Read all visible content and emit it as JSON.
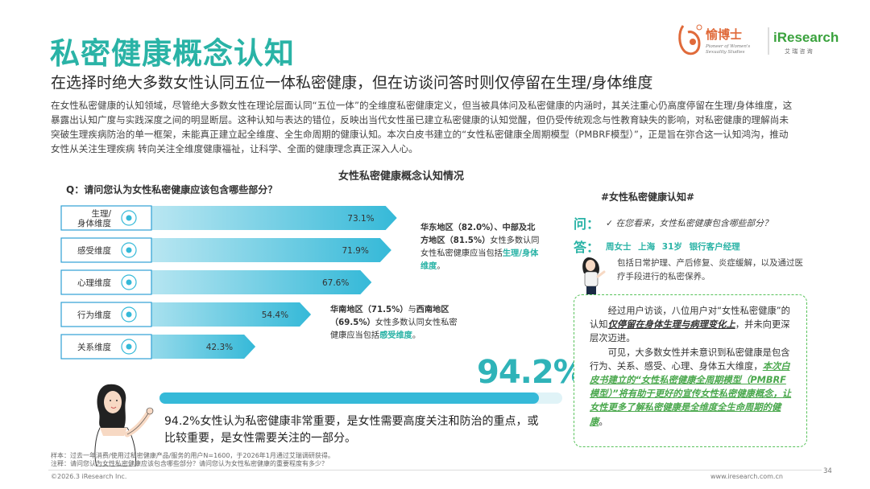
{
  "header": {
    "title": "私密健康概念认知",
    "subtitle": "在选择时绝大多数女性认同五位一体私密健康，但在访谈问答时则仅停留在生理/身体维度",
    "intro": "在女性私密健康的认知领域，尽管绝大多数女性在理论层面认同“五位一体”的全维度私密健康定义，但当被具体问及私密健康的内涵时，其关注重心仍高度停留在生理/身体维度，这暴露出认知广度与实践深度之间的明显断层。这种认知与表达的错位，反映出当代女性虽已建立私密健康的认知觉醒，但仍受传统观念与性教育缺失的影响，对私密健康的理解尚未突破生理疾病防治的单一框架，未能真正建立起全维度、全生命周期的健康认知。本次白皮书建立的“女性私密健康全周期模型（PMBRF模型）”，正是旨在弥合这一认知鸿沟，推动女性从关注生理疾病 转向关注全维度健康福祉，让科学、全面的健康理念真正深入人心。"
  },
  "logo": {
    "brand_cn": "愉博士",
    "brand_en_line1": "Pioneer of Women's",
    "brand_en_line2": "Sexuality Studies",
    "partner": "iResearch",
    "partner_cn": "艾 瑞 咨 询"
  },
  "chart_data": {
    "type": "bar",
    "title": "女性私密健康概念认知情况",
    "question": "Q：请问您认为女性私密健康应该包含哪些部分？",
    "categories": [
      "生理/身体维度",
      "感受维度",
      "心理维度",
      "行为维度",
      "关系维度"
    ],
    "category_lines": [
      [
        "生理/",
        "身体维度"
      ],
      [
        "感受维度"
      ],
      [
        "心理维度"
      ],
      [
        "行为维度"
      ],
      [
        "关系维度"
      ]
    ],
    "values": [
      73.1,
      71.9,
      67.6,
      54.4,
      42.3
    ],
    "value_labels": [
      "73.1%",
      "71.9%",
      "67.6%",
      "54.4%",
      "42.3%"
    ],
    "xlim": [
      0,
      100
    ],
    "icons": [
      "uterus-icon",
      "heart-hands-icon",
      "brain-head-icon",
      "person-icon",
      "couple-icon"
    ],
    "colors": {
      "bar_start": "#e9f7fb",
      "bar_end": "#35b9d8",
      "label_box": "#2fa0d4"
    },
    "overall": {
      "value": 94.2,
      "label": "94.2%"
    }
  },
  "callouts": {
    "c1_part1": "华东地区（82.0%）、中部及北方地区（81.5%）",
    "c1_part2": "女性多数认同女性私密健康应当包括",
    "c1_highlight": "生理/身体维度",
    "c1_end": "。",
    "c2_part1": "华南地区（71.5%）",
    "c2_part2": "与",
    "c2_part3": "西南地区（69.5%）",
    "c2_part4": "女性多数认同女性私密健康应当包括",
    "c2_highlight": "感受维度",
    "c2_end": "。"
  },
  "summary": "94.2%女性认为私密健康非常重要，是女性需要高度关注和防治的重点，或比较重要，是女性需要关注的一部分。",
  "interview": {
    "tag": "#女性私密健康认知#",
    "q_label": "问：",
    "q_text": "✓ 在您看来，女性私密健康包含哪些部分？",
    "a_label": "答：",
    "a_meta": "周女士 上海 31岁 银行客户经理",
    "a_text": "包括日常护理、产后修复、炎症缓解，以及通过医疗手段进行的私密保养。"
  },
  "insight": {
    "p1_a": "经过用户访谈，八位用户对“女性私密健康”的认知",
    "p1_em": "仅停留在身体生理与病理变化上",
    "p1_b": "，并未向更深层次迈进。",
    "p2_a": "可见，大多数女性并未意识到私密健康是包含行为、关系、感受、心理、身体五大维度，",
    "p2_em": "本次白皮书建立的“女性私密健康全周期模型（PMBRF模型）”将有助于更好的宣传女性私密健康概念，让女性更多了解私密健康是全维度全生命周期的健康",
    "p2_end": "。"
  },
  "footer": {
    "note1": "样本：过去一年消费/使用过私密健康产品/服务的用户N=1600，于2026年1月通过艾瑞调研获得。",
    "note2": "注释：请问您认为女性私密健康应该包含哪些部分？请问您认为女性私密健康的重要程度有多少？",
    "copyright": "©2026.3 iResearch Inc.",
    "site": "www.iresearch.com.cn",
    "page": "34"
  }
}
